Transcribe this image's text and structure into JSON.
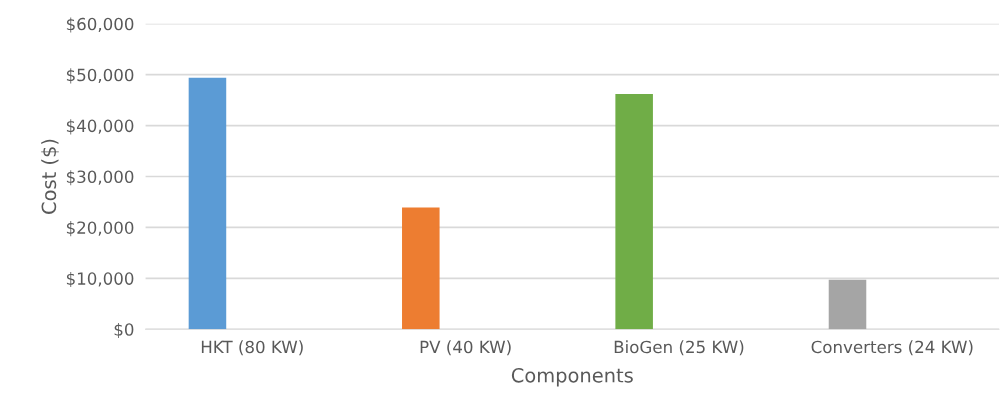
{
  "chart_data": {
    "type": "bar",
    "categories": [
      "HKT (80 KW)",
      "PV (40 KW)",
      "BioGen (25 KW)",
      "Converters (24 KW)"
    ],
    "values": [
      49400,
      23900,
      46200,
      9700
    ],
    "colors": [
      "#5b9bd5",
      "#ed7d31",
      "#70ad47",
      "#a5a5a5"
    ],
    "xlabel": "Components",
    "ylabel": "Cost ($)",
    "ylim": [
      0,
      60000
    ],
    "yticks": [
      {
        "value": 0,
        "label": "$0"
      },
      {
        "value": 10000,
        "label": "$10,000"
      },
      {
        "value": 20000,
        "label": "$20,000"
      },
      {
        "value": 30000,
        "label": "$30,000"
      },
      {
        "value": 40000,
        "label": "$40,000"
      },
      {
        "value": 50000,
        "label": "$50,000"
      },
      {
        "value": 60000,
        "label": "$60,000"
      }
    ],
    "grid": "y"
  }
}
